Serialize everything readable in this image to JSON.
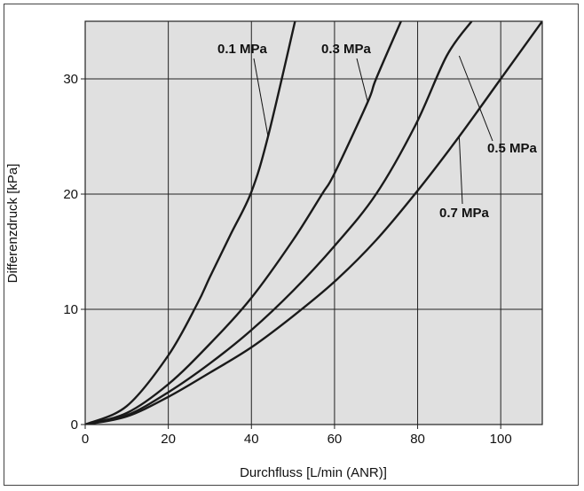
{
  "chart_data": {
    "type": "line",
    "title": "",
    "xlabel": "Durchfluss [L/min (ANR)]",
    "ylabel": "Differenzdruck [kPa]",
    "xlim": [
      0,
      110
    ],
    "ylim": [
      0,
      35
    ],
    "x_ticks": [
      0,
      20,
      40,
      60,
      80,
      100
    ],
    "y_ticks": [
      0,
      10,
      20,
      30
    ],
    "grid": true,
    "colors": {
      "plot_background": "#e0e0e0",
      "grid": "#222222",
      "curve": "#1a1a1a"
    },
    "series": [
      {
        "name": "0.1 MPa",
        "x": [
          0,
          10,
          20,
          27,
          30,
          35,
          40,
          44,
          50.5
        ],
        "y": [
          0,
          1.6,
          6,
          10.5,
          12.8,
          16.5,
          20.2,
          25,
          35
        ]
      },
      {
        "name": "0.3 MPa",
        "x": [
          0,
          10,
          20,
          30,
          40,
          50,
          57,
          60,
          68,
          70,
          76
        ],
        "y": [
          0,
          1,
          3.5,
          7,
          11,
          16,
          20,
          21.8,
          28,
          30,
          35
        ]
      },
      {
        "name": "0.5 MPa",
        "x": [
          0,
          10,
          20,
          30,
          40,
          50,
          60,
          70,
          79.5,
          87,
          93
        ],
        "y": [
          0,
          0.8,
          2.8,
          5.3,
          8.2,
          11.6,
          15.5,
          20,
          26,
          32,
          35
        ]
      },
      {
        "name": "0.7 MPa",
        "x": [
          0,
          10,
          20,
          30,
          40,
          50,
          60,
          70,
          80,
          90,
          100,
          110
        ],
        "y": [
          0,
          0.7,
          2.4,
          4.5,
          6.7,
          9.4,
          12.4,
          16,
          20.3,
          25,
          30,
          35
        ]
      }
    ]
  }
}
